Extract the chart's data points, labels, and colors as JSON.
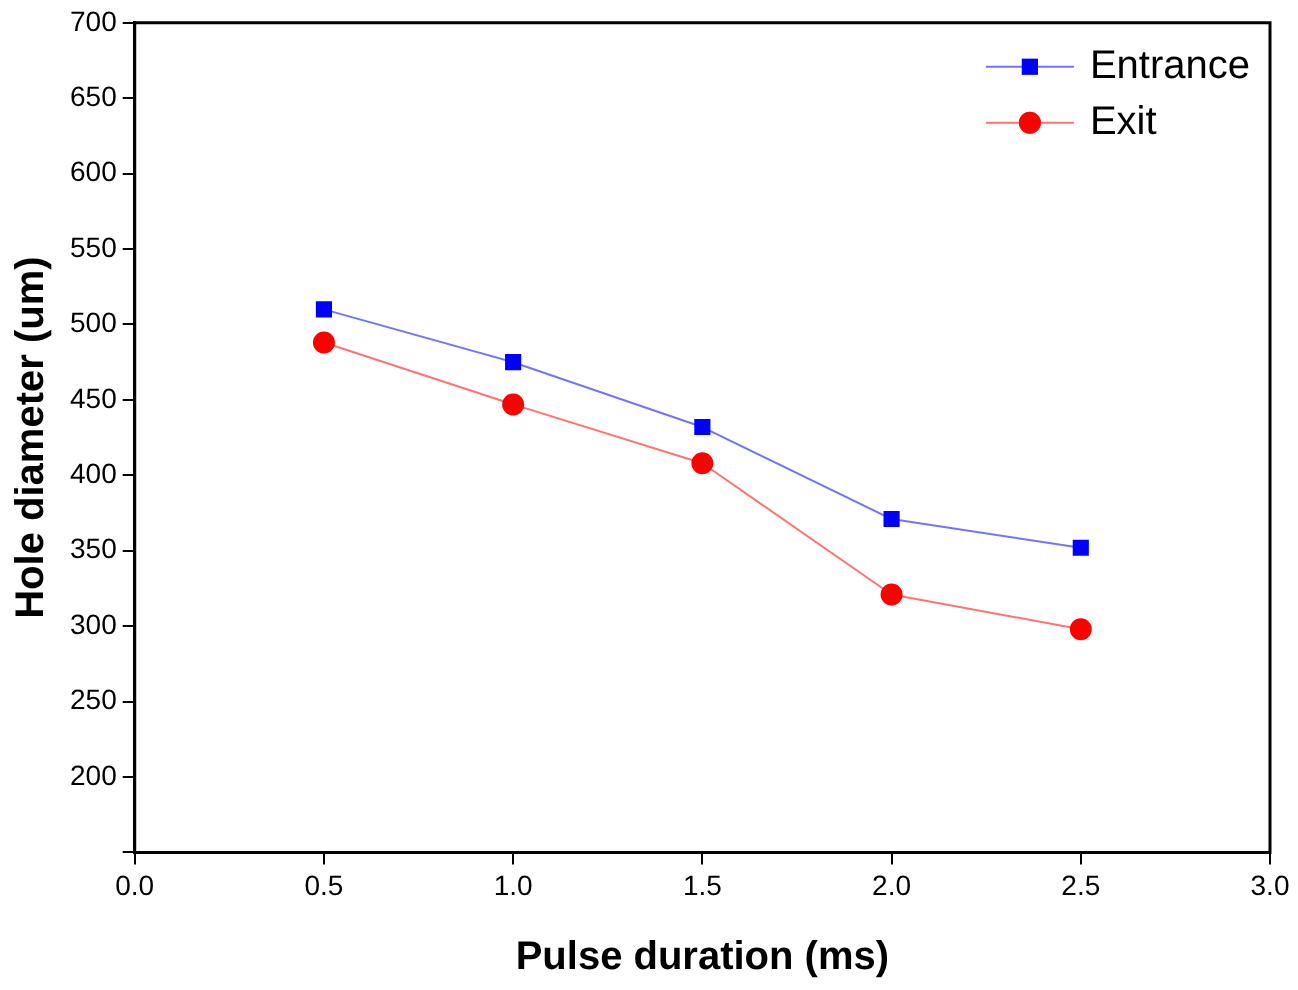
{
  "chart_data": {
    "type": "line",
    "xlabel": "Pulse duration (ms)",
    "ylabel": "Hole diameter (um)",
    "x": [
      0.5,
      1.0,
      1.5,
      2.0,
      2.5
    ],
    "series": [
      {
        "name": "Entrance",
        "color": "#0000ff",
        "values": [
          510,
          475,
          432,
          371,
          352
        ],
        "marker": "square"
      },
      {
        "name": "Exit",
        "color": "#ff0000",
        "values": [
          488,
          447,
          408,
          321,
          298
        ],
        "marker": "circle"
      }
    ],
    "xlim": [
      0,
      3
    ],
    "xticks": [
      {
        "value": 0,
        "label": "0.0"
      },
      {
        "value": 0.5,
        "label": "0.5"
      },
      {
        "value": 1,
        "label": "1.0"
      },
      {
        "value": 1.5,
        "label": "1.5"
      },
      {
        "value": 2,
        "label": "2.0"
      },
      {
        "value": 2.5,
        "label": "2.5"
      },
      {
        "value": 3,
        "label": "3.0"
      }
    ],
    "ylim": [
      150,
      700
    ],
    "yticks": [
      {
        "value": 150,
        "label": null
      },
      200,
      250,
      300,
      350,
      400,
      450,
      500,
      550,
      600,
      650,
      700
    ],
    "grid": false,
    "legend": "top right",
    "line_style": "solid"
  }
}
